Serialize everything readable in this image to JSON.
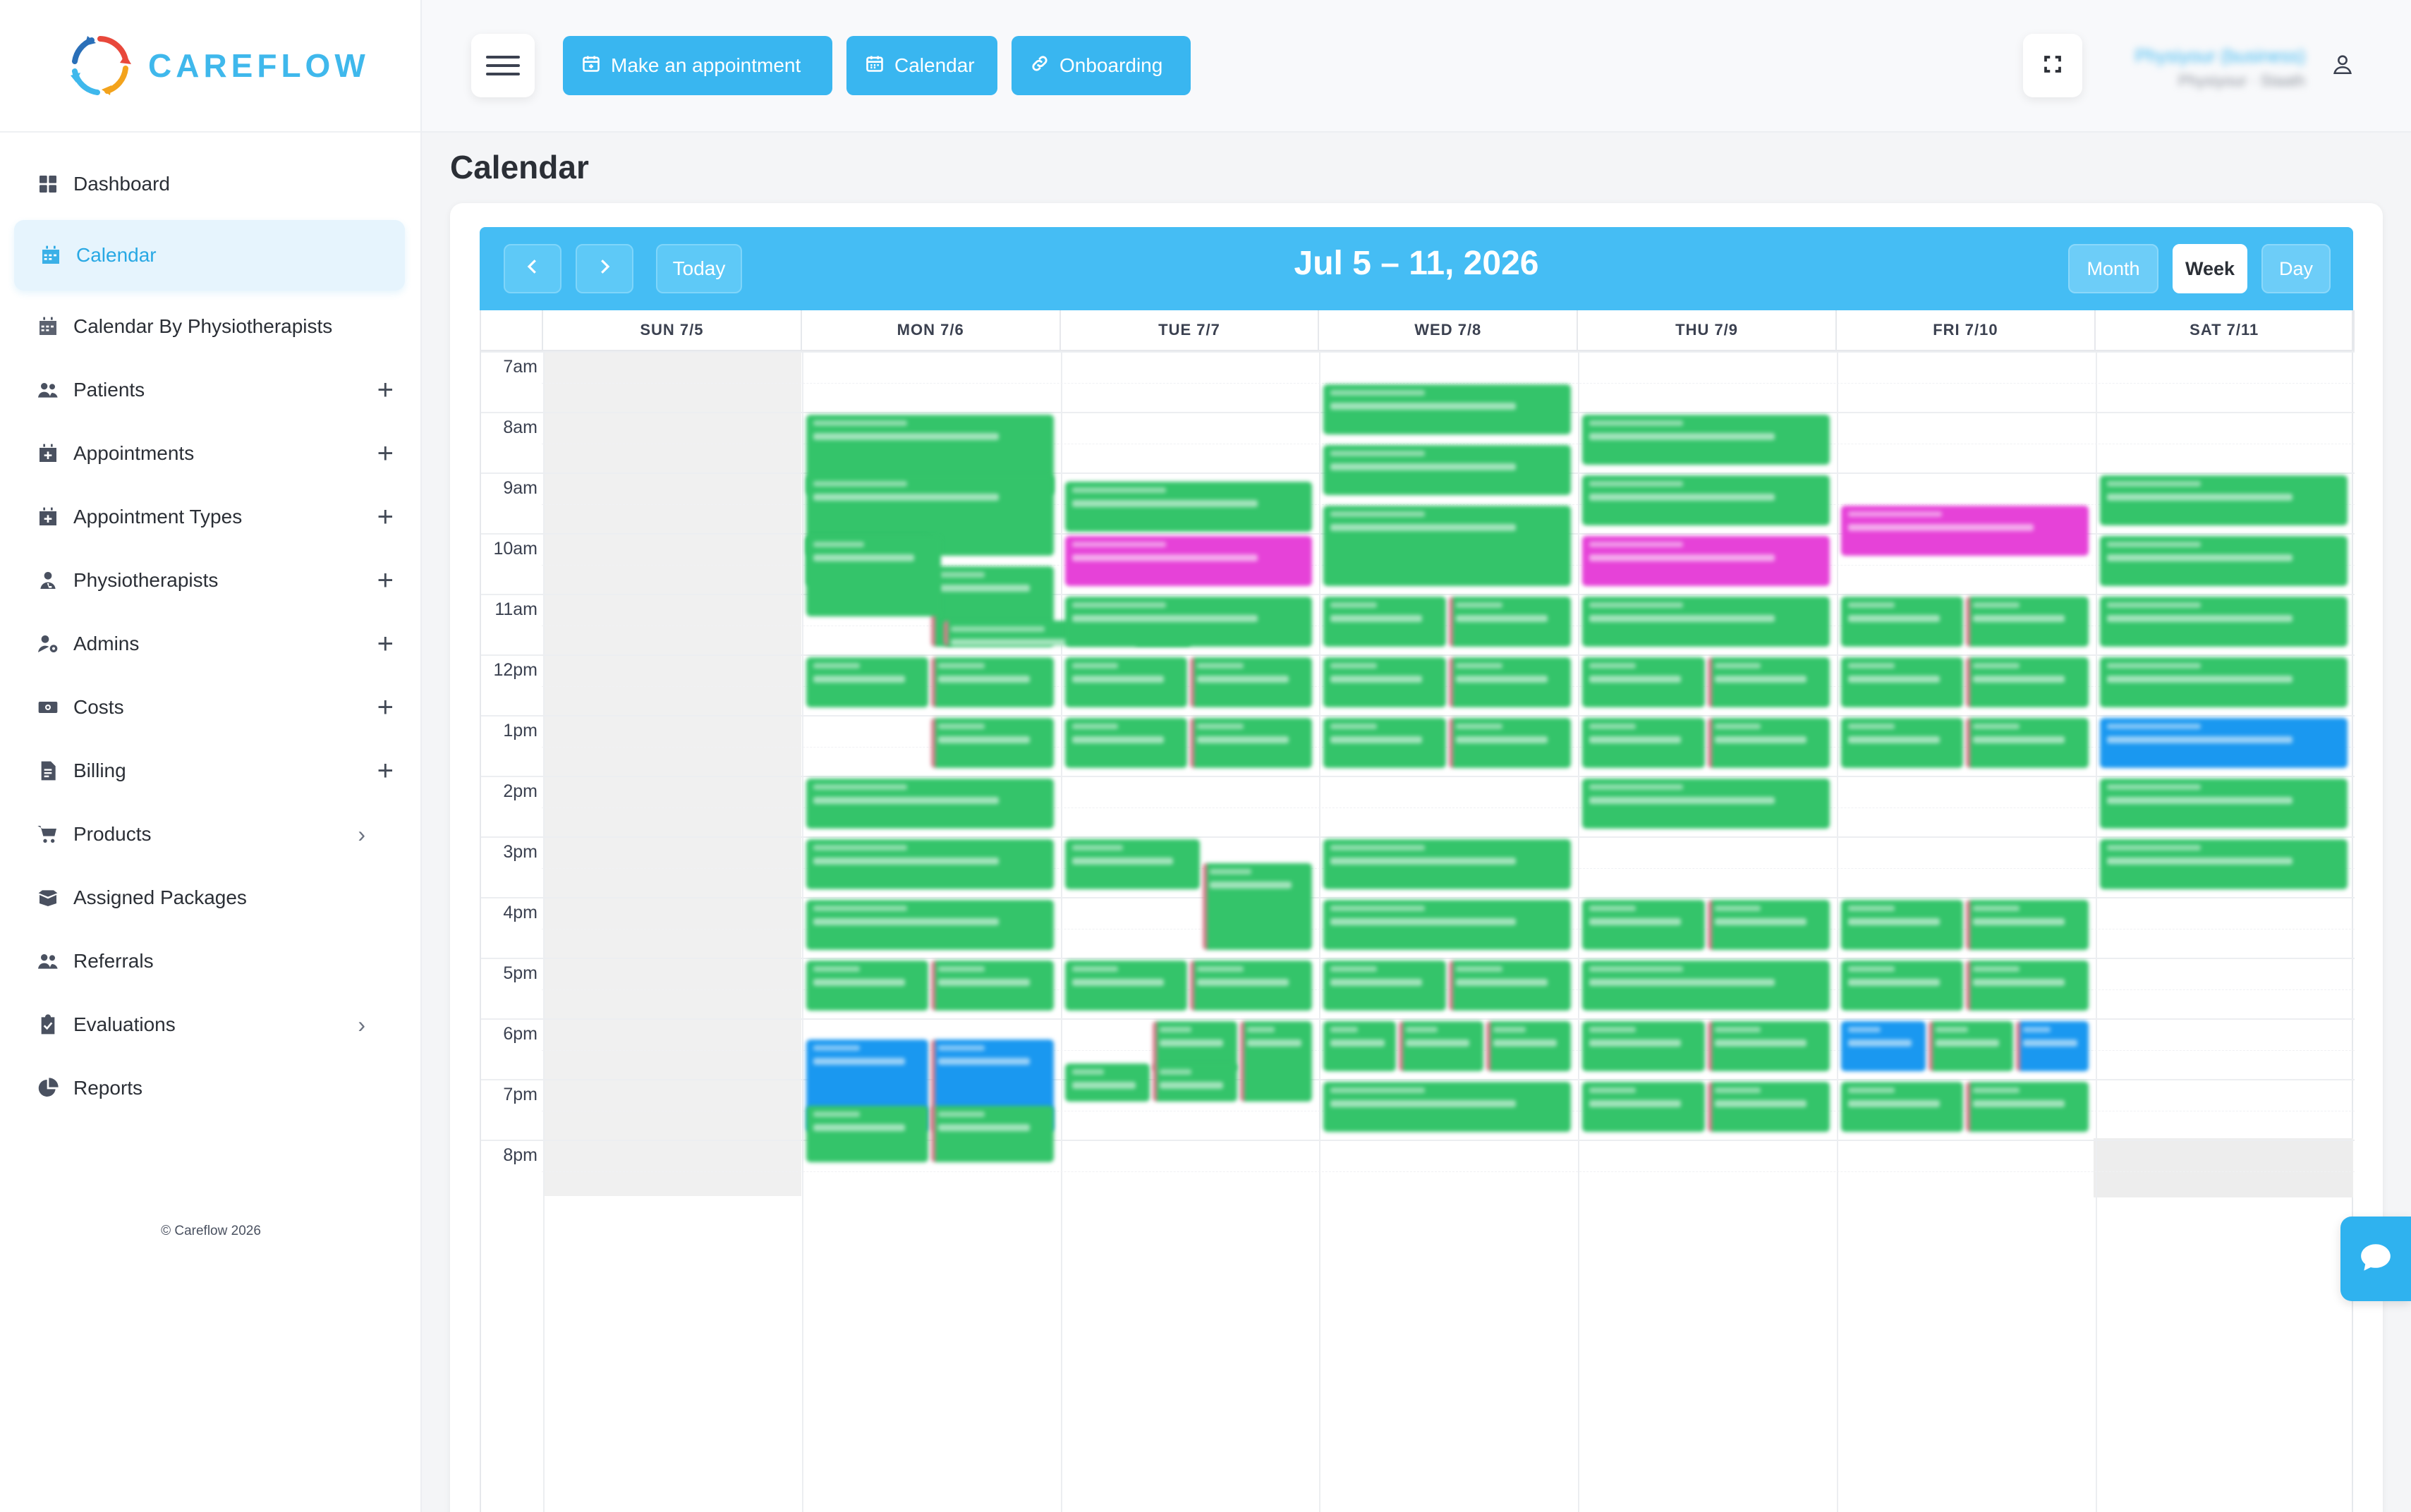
{
  "brand": {
    "name": "CAREFLOW"
  },
  "sidebar": {
    "items": [
      {
        "label": "Dashboard",
        "icon": "dashboard-icon",
        "active": false,
        "suffix": ""
      },
      {
        "label": "Calendar",
        "icon": "calendar-icon",
        "active": true,
        "suffix": ""
      },
      {
        "label": "Calendar By Physiotherapists",
        "icon": "calendar-icon",
        "active": false,
        "suffix": ""
      },
      {
        "label": "Patients",
        "icon": "users-icon",
        "active": false,
        "suffix": "+"
      },
      {
        "label": "Appointments",
        "icon": "calendar-plus-icon",
        "active": false,
        "suffix": "+"
      },
      {
        "label": "Appointment Types",
        "icon": "calendar-plus-icon",
        "active": false,
        "suffix": "+"
      },
      {
        "label": "Physiotherapists",
        "icon": "user-doctor-icon",
        "active": false,
        "suffix": "+"
      },
      {
        "label": "Admins",
        "icon": "user-gear-icon",
        "active": false,
        "suffix": "+"
      },
      {
        "label": "Costs",
        "icon": "money-icon",
        "active": false,
        "suffix": "+"
      },
      {
        "label": "Billing",
        "icon": "file-invoice-icon",
        "active": false,
        "suffix": "+"
      },
      {
        "label": "Products",
        "icon": "cart-icon",
        "active": false,
        "suffix": "›"
      },
      {
        "label": "Assigned Packages",
        "icon": "box-icon",
        "active": false,
        "suffix": ""
      },
      {
        "label": "Referrals",
        "icon": "users-icon",
        "active": false,
        "suffix": ""
      },
      {
        "label": "Evaluations",
        "icon": "clipboard-check-icon",
        "active": false,
        "suffix": "›"
      },
      {
        "label": "Reports",
        "icon": "pie-chart-icon",
        "active": false,
        "suffix": ""
      }
    ],
    "footer": "© Careflow 2026"
  },
  "topbar": {
    "make_appointment": "Make an appointment",
    "calendar": "Calendar",
    "onboarding": "Onboarding",
    "user_name": "Physiyour (business)",
    "user_role": "Physiyour · Staath"
  },
  "page": {
    "title": "Calendar"
  },
  "calendar": {
    "range_title": "Jul 5 – 11, 2026",
    "today_label": "Today",
    "views": [
      "Month",
      "Week",
      "Day"
    ],
    "active_view": "Week",
    "days": [
      "SUN 7/5",
      "MON 7/6",
      "TUE 7/7",
      "WED 7/8",
      "THU 7/9",
      "FRI 7/10",
      "SAT 7/11"
    ],
    "hours": [
      "7am",
      "8am",
      "9am",
      "10am",
      "11am",
      "12pm",
      "1pm",
      "2pm",
      "3pm",
      "4pm",
      "5pm",
      "6pm",
      "7pm",
      "8pm"
    ]
  },
  "colors": {
    "accent": "#45bdf4",
    "event_green": "#34c46a",
    "event_pink": "#e642d8",
    "event_blue": "#1a98f0"
  }
}
